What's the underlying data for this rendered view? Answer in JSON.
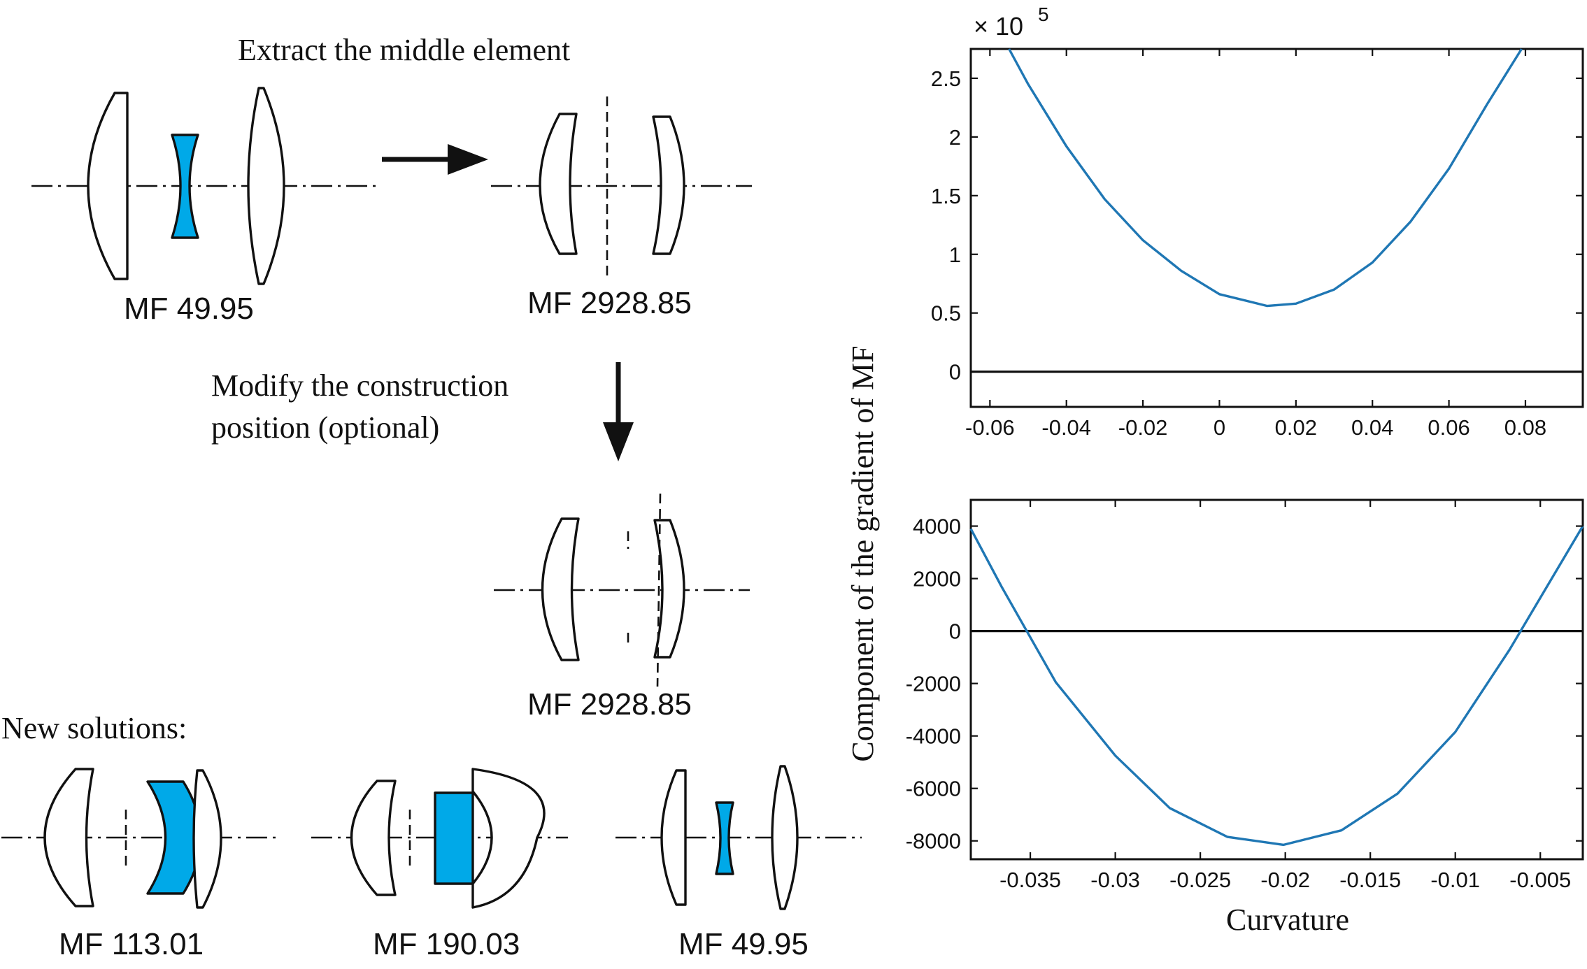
{
  "texts": {
    "extract": "Extract the middle element",
    "modify_line1": "Modify the construction",
    "modify_line2": "position (optional)",
    "new_solutions": "New solutions:"
  },
  "mf_labels": {
    "original": "MF 49.95",
    "extracted": "MF 2928.85",
    "modified": "MF 2928.85",
    "solution1": "MF 113.01",
    "solution2": "MF 190.03",
    "solution3": "MF 49.95"
  },
  "colors": {
    "highlight_lens": "#00a9e8",
    "curve": "#1f77b4",
    "line": "#111111"
  },
  "shared_ylabel": "Component of the gradient of MF",
  "chart_data": [
    {
      "type": "line",
      "title": "",
      "xlabel": "",
      "ylabel": "Component of the gradient of MF",
      "xlim": [
        -0.065,
        0.095
      ],
      "ylim": [
        -0.3,
        2.75
      ],
      "y_scale_label": "× 10",
      "y_scale_exponent": "5",
      "xticks": [
        -0.06,
        -0.04,
        -0.02,
        0,
        0.02,
        0.04,
        0.06,
        0.08
      ],
      "xtick_labels": [
        "-0.06",
        "-0.04",
        "-0.02",
        "0",
        "0.02",
        "0.04",
        "0.06",
        "0.08"
      ],
      "yticks": [
        0,
        0.5,
        1,
        1.5,
        2,
        2.5
      ],
      "ytick_labels": [
        "0",
        "0.5",
        "1",
        "1.5",
        "2",
        "2.5"
      ],
      "zero_line": 0,
      "series": [
        {
          "name": "gradient component",
          "x": [
            -0.055,
            -0.05,
            -0.04,
            -0.03,
            -0.02,
            -0.01,
            0,
            0.0125,
            0.02,
            0.03,
            0.04,
            0.05,
            0.06,
            0.07,
            0.079
          ],
          "y": [
            2.75,
            2.45,
            1.92,
            1.47,
            1.12,
            0.86,
            0.66,
            0.56,
            0.58,
            0.7,
            0.93,
            1.28,
            1.73,
            2.28,
            2.75
          ]
        }
      ]
    },
    {
      "type": "line",
      "title": "",
      "xlabel": "Curvature",
      "ylabel": "Component of the gradient of MF",
      "xlim": [
        -0.0385,
        -0.0025
      ],
      "ylim": [
        -8700,
        5000
      ],
      "xticks": [
        -0.035,
        -0.03,
        -0.025,
        -0.02,
        -0.015,
        -0.01,
        -0.005
      ],
      "xtick_labels": [
        "-0.035",
        "-0.03",
        "-0.025",
        "-0.02",
        "-0.015",
        "-0.01",
        "-0.005"
      ],
      "yticks": [
        -8000,
        -6000,
        -4000,
        -2000,
        0,
        2000,
        4000
      ],
      "ytick_labels": [
        "-8000",
        "-6000",
        "-4000",
        "-2000",
        "0",
        "2000",
        "4000"
      ],
      "zero_line": 0,
      "series": [
        {
          "name": "gradient component",
          "x": [
            -0.0385,
            -0.0367,
            -0.0335,
            -0.03,
            -0.0268,
            -0.0234,
            -0.0201,
            -0.0167,
            -0.0134,
            -0.01,
            -0.0068,
            -0.0025
          ],
          "y": [
            3900,
            1700,
            -1950,
            -4750,
            -6750,
            -7850,
            -8150,
            -7600,
            -6200,
            -3850,
            -700,
            4000
          ]
        }
      ]
    }
  ]
}
